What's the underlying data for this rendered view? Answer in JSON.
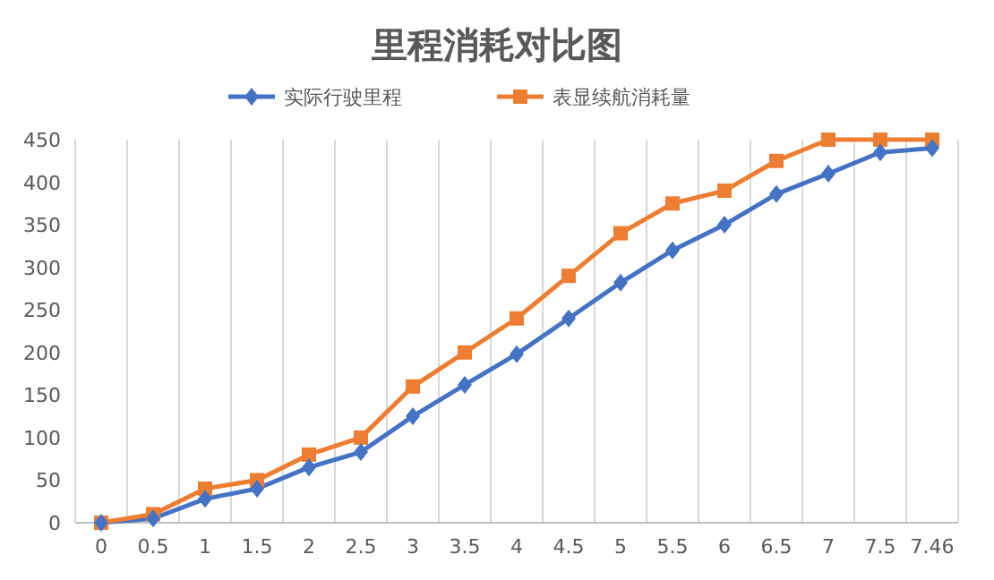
{
  "chart_data": {
    "type": "line",
    "title": "里程消耗对比图",
    "categories": [
      "0",
      "0.5",
      "1",
      "1.5",
      "2",
      "2.5",
      "3",
      "3.5",
      "4",
      "4.5",
      "5",
      "5.5",
      "6",
      "6.5",
      "7",
      "7.5",
      "7.46"
    ],
    "series": [
      {
        "name": "实际行驶里程",
        "color": "#4472c4",
        "marker": "diamond",
        "values": [
          0,
          5,
          28,
          40,
          65,
          83,
          125,
          162,
          198,
          240,
          282,
          320,
          350,
          386,
          410,
          435,
          440
        ]
      },
      {
        "name": "表显续航消耗量",
        "color": "#ed7d31",
        "marker": "square",
        "values": [
          0,
          10,
          40,
          50,
          80,
          100,
          160,
          200,
          240,
          290,
          340,
          375,
          390,
          425,
          450,
          450,
          450
        ]
      }
    ],
    "ylim": [
      0,
      450
    ],
    "yticks": [
      0,
      50,
      100,
      150,
      200,
      250,
      300,
      350,
      400,
      450
    ],
    "grid": "x",
    "legend": "top",
    "line_style": "solid"
  }
}
